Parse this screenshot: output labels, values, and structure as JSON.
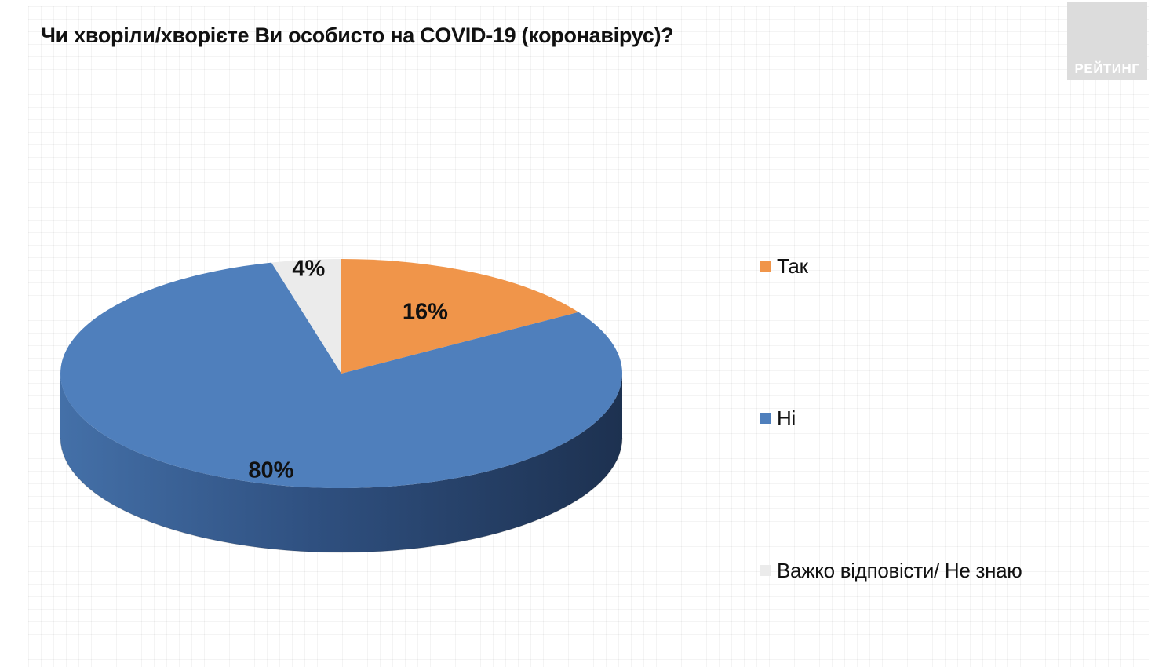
{
  "title": "Чи хворіли/хворієте Ви особисто на COVID-19 (коронавірус)?",
  "logo": {
    "text": "РЕЙТИНГ"
  },
  "chart_data": {
    "type": "pie",
    "title": "Чи хворіли/хворієте Ви особисто на COVID-19 (коронавірус)?",
    "style": "3d",
    "slices": [
      {
        "label": "Так",
        "value": 16,
        "display": "16%",
        "color": "#f0954a"
      },
      {
        "label": "Ні",
        "value": 80,
        "display": "80%",
        "color": "#4f7fbc"
      },
      {
        "label": "Важко відповісти/ Не знаю",
        "value": 4,
        "display": "4%",
        "color": "#ebebeb"
      }
    ],
    "legend": {
      "position": "right"
    }
  },
  "legend": {
    "items": [
      {
        "label": "Так",
        "color": "#f0954a"
      },
      {
        "label": "Ні",
        "color": "#4f7fbc"
      },
      {
        "label": "Важко відповісти/ Не знаю",
        "color": "#ebebeb"
      }
    ]
  }
}
